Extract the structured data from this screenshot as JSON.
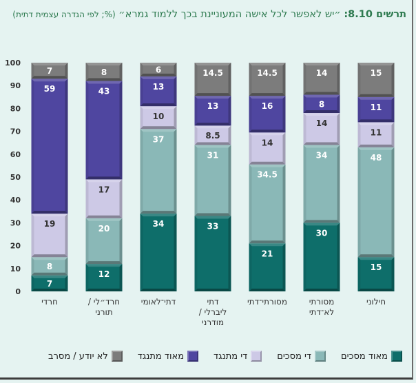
{
  "title": {
    "figure_number": "תרשים 8.10:",
    "main": "״יש לאפשר לכל אישה המעוניינת בכך ללמוד גמרא״",
    "qualifier": "(%; לפי הגדרה עצמית דתית)"
  },
  "chart_data": {
    "type": "bar",
    "stacked": true,
    "title": "תרשים 8.10: ״יש לאפשר לכל אישה המעוניינת בכך ללמוד גמרא״ (%; לפי הגדרה עצמית דתית)",
    "xlabel": "",
    "ylabel": "",
    "ylim": [
      0,
      100
    ],
    "yticks": [
      0,
      10,
      20,
      30,
      40,
      50,
      60,
      70,
      80,
      90,
      100
    ],
    "grid": false,
    "legend_position": "bottom",
    "categories": [
      "חרדי",
      "חרד״לי / תורני",
      "דתי־לאומי",
      "דתי ליברלי / מודרני",
      "מסורתי־דתי",
      "מסורתי לא־דתי",
      "חילוני"
    ],
    "category_lines": [
      [
        "חרדי"
      ],
      [
        "חרד״לי /",
        "תורני"
      ],
      [
        "דתי־לאומי"
      ],
      [
        "דתי",
        "ליברלי /",
        "מודרני"
      ],
      [
        "מסורתי־דתי"
      ],
      [
        "מסורתי",
        "לא־דתי"
      ],
      [
        "חילוני"
      ]
    ],
    "series": [
      {
        "name": "מאוד מסכים",
        "color": "#0e6e6a",
        "label_color": "#ffffff",
        "values": [
          7,
          12,
          34,
          33,
          21,
          30,
          15
        ]
      },
      {
        "name": "די מסכים",
        "color": "#8ab8b7",
        "label_color": "#ffffff",
        "values": [
          8,
          20,
          37,
          31,
          34.5,
          34,
          48
        ]
      },
      {
        "name": "די מתנגד",
        "color": "#cdc9e6",
        "label_color": "#333333",
        "values": [
          19,
          17,
          10,
          8.5,
          14,
          14,
          11
        ]
      },
      {
        "name": "מאוד מתנגד",
        "color": "#4f46a0",
        "label_color": "#ffffff",
        "values": [
          59,
          43,
          13,
          13,
          16,
          8,
          11
        ]
      },
      {
        "name": "לא יודע / מסרב",
        "color": "#7c7c7c",
        "label_color": "#ffffff",
        "values": [
          7,
          8,
          6,
          14.5,
          14.5,
          14,
          15
        ]
      }
    ]
  }
}
